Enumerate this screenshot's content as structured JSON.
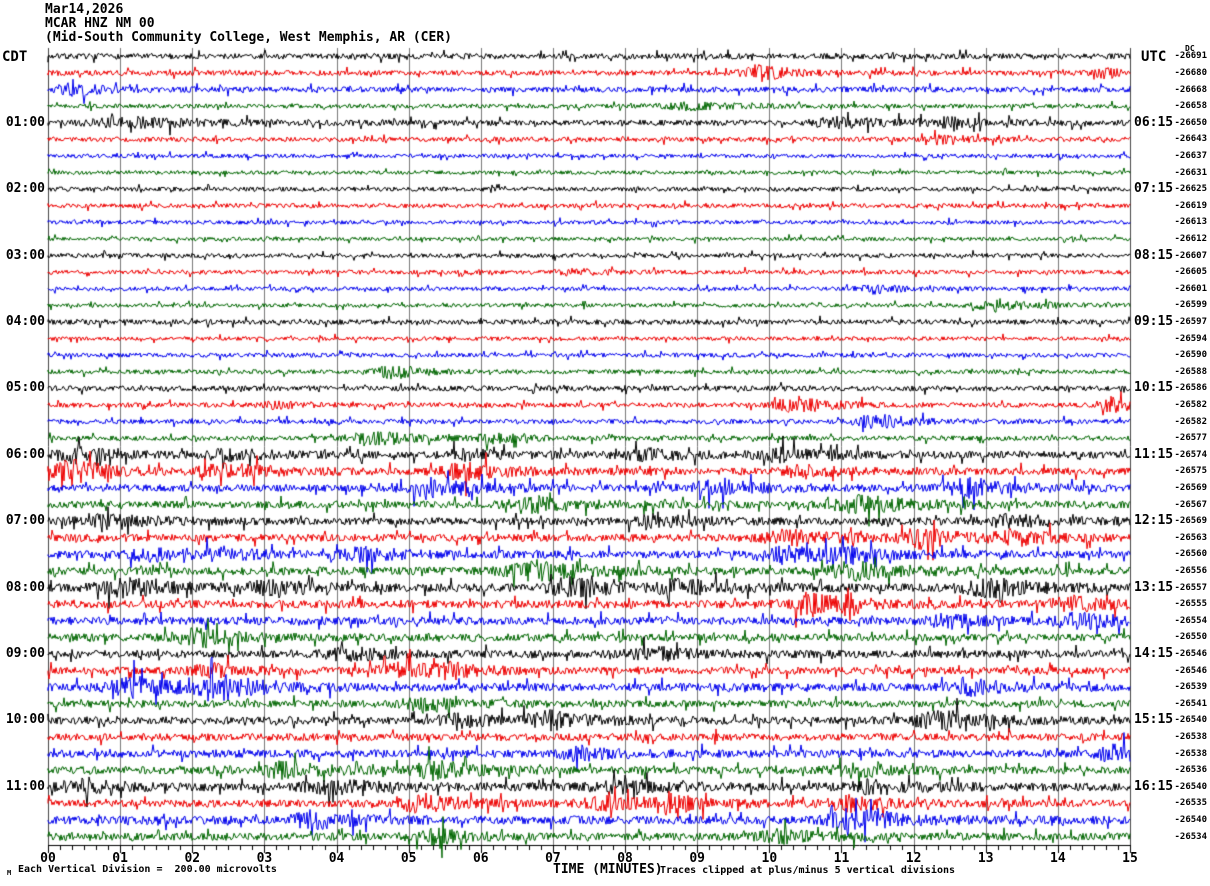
{
  "header": {
    "date": "Mar14,2026",
    "station": "MCAR HNZ NM 00",
    "location": "(Mid-South Community College, West Memphis, AR (CER)"
  },
  "axes": {
    "left_header": "CDT",
    "right_header": "UTC",
    "dc_header": "DC",
    "x_label": "TIME (MINUTES)",
    "x_ticks": [
      "00",
      "01",
      "02",
      "03",
      "04",
      "05",
      "06",
      "07",
      "08",
      "09",
      "10",
      "11",
      "12",
      "13",
      "14",
      "15"
    ]
  },
  "footer": {
    "scale_note": "Each Vertical Division =  200.00 microvolts",
    "clip_note": "Traces clipped at plus/minus 5 vertical divisions",
    "watermark": "M"
  },
  "chart_data": {
    "type": "line",
    "subtype": "helicorder-seismogram",
    "title": "MCAR HNZ NM 00  Mar14,2026",
    "xlabel": "TIME (MINUTES)",
    "x_range_minutes": [
      0,
      15
    ],
    "minutes_per_line": 15,
    "lines_per_hour": 4,
    "grid": "vertical-minute-lines",
    "grid_color": "#777777",
    "border_color": "#444444",
    "colors_cycle": [
      "#000000",
      "#ee0000",
      "#0000ee",
      "#006600"
    ],
    "vertical_division_microvolts": 200.0,
    "clip_divisions": 5,
    "rows": [
      {
        "cdt": "",
        "utc": "",
        "dc": "-26691",
        "color": "#000000",
        "amp": 2.8,
        "events": []
      },
      {
        "cdt": "",
        "utc": "",
        "dc": "-26680",
        "color": "#ee0000",
        "amp": 2.6,
        "events": [
          [
            9.9,
            7,
            25
          ],
          [
            14.7,
            4,
            20
          ]
        ]
      },
      {
        "cdt": "",
        "utc": "",
        "dc": "-26668",
        "color": "#0000ee",
        "amp": 2.8,
        "events": [
          [
            0.3,
            5,
            30
          ]
        ]
      },
      {
        "cdt": "",
        "utc": "",
        "dc": "-26658",
        "color": "#006600",
        "amp": 2.2,
        "events": [
          [
            8.9,
            3,
            40
          ]
        ]
      },
      {
        "cdt": "01:00",
        "utc": "06:15",
        "dc": "-26650",
        "color": "#000000",
        "amp": 2.8,
        "events": [
          [
            1.2,
            4,
            60
          ],
          [
            11.0,
            4,
            40
          ],
          [
            12.4,
            4,
            30
          ]
        ]
      },
      {
        "cdt": "",
        "utc": "",
        "dc": "-26643",
        "color": "#ee0000",
        "amp": 2.4,
        "events": [
          [
            12.4,
            4,
            20
          ]
        ]
      },
      {
        "cdt": "",
        "utc": "",
        "dc": "-26637",
        "color": "#0000ee",
        "amp": 2.0,
        "events": []
      },
      {
        "cdt": "",
        "utc": "",
        "dc": "-26631",
        "color": "#006600",
        "amp": 1.9,
        "events": []
      },
      {
        "cdt": "02:00",
        "utc": "07:15",
        "dc": "-26625",
        "color": "#000000",
        "amp": 2.2,
        "events": []
      },
      {
        "cdt": "",
        "utc": "",
        "dc": "-26619",
        "color": "#ee0000",
        "amp": 2.2,
        "events": []
      },
      {
        "cdt": "",
        "utc": "",
        "dc": "-26613",
        "color": "#0000ee",
        "amp": 2.0,
        "events": []
      },
      {
        "cdt": "",
        "utc": "",
        "dc": "-26612",
        "color": "#006600",
        "amp": 1.9,
        "events": []
      },
      {
        "cdt": "03:00",
        "utc": "08:15",
        "dc": "-26607",
        "color": "#000000",
        "amp": 2.2,
        "events": []
      },
      {
        "cdt": "",
        "utc": "",
        "dc": "-26605",
        "color": "#ee0000",
        "amp": 2.2,
        "events": [
          [
            7.3,
            3,
            25
          ]
        ]
      },
      {
        "cdt": "",
        "utc": "",
        "dc": "-26601",
        "color": "#0000ee",
        "amp": 2.0,
        "events": [
          [
            11.5,
            4,
            25
          ]
        ]
      },
      {
        "cdt": "",
        "utc": "",
        "dc": "-26599",
        "color": "#006600",
        "amp": 2.0,
        "events": [
          [
            13.2,
            5,
            35
          ]
        ]
      },
      {
        "cdt": "04:00",
        "utc": "09:15",
        "dc": "-26597",
        "color": "#000000",
        "amp": 2.6,
        "events": []
      },
      {
        "cdt": "",
        "utc": "",
        "dc": "-26594",
        "color": "#ee0000",
        "amp": 2.0,
        "events": []
      },
      {
        "cdt": "",
        "utc": "",
        "dc": "-26590",
        "color": "#0000ee",
        "amp": 2.2,
        "events": []
      },
      {
        "cdt": "",
        "utc": "",
        "dc": "-26588",
        "color": "#006600",
        "amp": 2.2,
        "events": [
          [
            4.8,
            6,
            25
          ]
        ]
      },
      {
        "cdt": "05:00",
        "utc": "10:15",
        "dc": "-26586",
        "color": "#000000",
        "amp": 2.6,
        "events": []
      },
      {
        "cdt": "",
        "utc": "",
        "dc": "-26582",
        "color": "#ee0000",
        "amp": 2.4,
        "events": [
          [
            3.2,
            3,
            20
          ],
          [
            10.4,
            7,
            30
          ],
          [
            14.8,
            6,
            25
          ]
        ]
      },
      {
        "cdt": "",
        "utc": "",
        "dc": "-26582",
        "color": "#0000ee",
        "amp": 2.4,
        "events": [
          [
            11.5,
            6,
            30
          ]
        ]
      },
      {
        "cdt": "",
        "utc": "",
        "dc": "-26577",
        "color": "#006600",
        "amp": 2.4,
        "events": [
          [
            4.5,
            7,
            30
          ],
          [
            6.2,
            4,
            25
          ]
        ]
      },
      {
        "cdt": "06:00",
        "utc": "11:15",
        "dc": "-26574",
        "color": "#000000",
        "amp": 3.6,
        "events": [
          [
            0.4,
            6,
            30
          ],
          [
            2.5,
            4,
            40
          ],
          [
            5.8,
            4,
            30
          ],
          [
            8.3,
            5,
            30
          ],
          [
            10.2,
            5,
            40
          ]
        ]
      },
      {
        "cdt": "",
        "utc": "",
        "dc": "-26575",
        "color": "#ee0000",
        "amp": 3.6,
        "events": [
          [
            0.35,
            12,
            25
          ],
          [
            2.5,
            6,
            40
          ],
          [
            5.8,
            7,
            35
          ],
          [
            10.5,
            5,
            30
          ]
        ]
      },
      {
        "cdt": "",
        "utc": "",
        "dc": "-26569",
        "color": "#0000ee",
        "amp": 3.6,
        "events": [
          [
            5.3,
            8,
            35
          ],
          [
            9.3,
            6,
            40
          ],
          [
            12.8,
            8,
            35
          ]
        ]
      },
      {
        "cdt": "",
        "utc": "",
        "dc": "-26567",
        "color": "#006600",
        "amp": 3.6,
        "events": [
          [
            6.8,
            6,
            40
          ],
          [
            11.3,
            7,
            45
          ]
        ]
      },
      {
        "cdt": "07:00",
        "utc": "12:15",
        "dc": "-26569",
        "color": "#000000",
        "amp": 3.8,
        "events": [
          [
            0.8,
            5,
            40
          ],
          [
            8.4,
            6,
            30
          ],
          [
            13.4,
            5,
            40
          ]
        ]
      },
      {
        "cdt": "",
        "utc": "",
        "dc": "-26563",
        "color": "#ee0000",
        "amp": 3.8,
        "events": [
          [
            10.3,
            6,
            40
          ],
          [
            12.1,
            8,
            30
          ],
          [
            13.4,
            6,
            30
          ]
        ]
      },
      {
        "cdt": "",
        "utc": "",
        "dc": "-26560",
        "color": "#0000ee",
        "amp": 3.8,
        "events": [
          [
            1.4,
            5,
            30
          ],
          [
            2.4,
            6,
            25
          ],
          [
            4.4,
            5,
            35
          ],
          [
            10.2,
            7,
            35
          ],
          [
            11.2,
            5,
            30
          ]
        ]
      },
      {
        "cdt": "",
        "utc": "",
        "dc": "-26556",
        "color": "#006600",
        "amp": 4.0,
        "events": [
          [
            6.8,
            8,
            40
          ],
          [
            11.2,
            7,
            40
          ]
        ]
      },
      {
        "cdt": "08:00",
        "utc": "13:15",
        "dc": "-26557",
        "color": "#000000",
        "amp": 4.2,
        "events": [
          [
            1.1,
            7,
            40
          ],
          [
            3.1,
            5,
            30
          ],
          [
            7.3,
            8,
            35
          ],
          [
            8.8,
            6,
            35
          ],
          [
            13.1,
            7,
            40
          ]
        ]
      },
      {
        "cdt": "",
        "utc": "",
        "dc": "-26555",
        "color": "#ee0000",
        "amp": 4.0,
        "events": [
          [
            10.6,
            9,
            35
          ],
          [
            11.05,
            22,
            6
          ],
          [
            14.2,
            6,
            30
          ]
        ]
      },
      {
        "cdt": "",
        "utc": "",
        "dc": "-26554",
        "color": "#0000ee",
        "amp": 4.0,
        "events": [
          [
            12.5,
            5,
            30
          ],
          [
            14.3,
            7,
            30
          ]
        ]
      },
      {
        "cdt": "",
        "utc": "",
        "dc": "-26550",
        "color": "#006600",
        "amp": 3.8,
        "events": [
          [
            2.1,
            7,
            35
          ]
        ]
      },
      {
        "cdt": "09:00",
        "utc": "14:15",
        "dc": "-26546",
        "color": "#000000",
        "amp": 3.8,
        "events": [
          [
            4.2,
            5,
            35
          ],
          [
            8.4,
            5,
            35
          ]
        ]
      },
      {
        "cdt": "",
        "utc": "",
        "dc": "-26546",
        "color": "#ee0000",
        "amp": 3.6,
        "events": [
          [
            2.3,
            5,
            30
          ],
          [
            4.9,
            7,
            30
          ],
          [
            5.6,
            5,
            25
          ]
        ]
      },
      {
        "cdt": "",
        "utc": "",
        "dc": "-26539",
        "color": "#0000ee",
        "amp": 4.0,
        "events": [
          [
            1.2,
            8,
            35
          ],
          [
            2.4,
            10,
            35
          ],
          [
            12.8,
            6,
            30
          ]
        ]
      },
      {
        "cdt": "",
        "utc": "",
        "dc": "-26541",
        "color": "#006600",
        "amp": 3.6,
        "events": [
          [
            5.2,
            6,
            30
          ]
        ]
      },
      {
        "cdt": "10:00",
        "utc": "15:15",
        "dc": "-26540",
        "color": "#000000",
        "amp": 3.8,
        "events": [
          [
            5.7,
            5,
            30
          ],
          [
            7.0,
            7,
            35
          ],
          [
            12.4,
            8,
            35
          ]
        ]
      },
      {
        "cdt": "",
        "utc": "",
        "dc": "-26538",
        "color": "#ee0000",
        "amp": 3.6,
        "events": []
      },
      {
        "cdt": "",
        "utc": "",
        "dc": "-26538",
        "color": "#0000ee",
        "amp": 4.0,
        "events": [
          [
            7.4,
            5,
            30
          ],
          [
            14.8,
            7,
            25
          ]
        ]
      },
      {
        "cdt": "",
        "utc": "",
        "dc": "-26536",
        "color": "#006600",
        "amp": 3.8,
        "events": [
          [
            3.3,
            7,
            30
          ],
          [
            5.4,
            8,
            30
          ],
          [
            11.2,
            5,
            35
          ]
        ]
      },
      {
        "cdt": "11:00",
        "utc": "16:15",
        "dc": "-26540",
        "color": "#000000",
        "amp": 4.2,
        "events": [
          [
            0.5,
            5,
            30
          ],
          [
            4.0,
            5,
            40
          ],
          [
            8.0,
            5,
            40
          ],
          [
            11.5,
            5,
            35
          ]
        ]
      },
      {
        "cdt": "",
        "utc": "",
        "dc": "-26535",
        "color": "#ee0000",
        "amp": 3.8,
        "events": [
          [
            5.2,
            8,
            30
          ],
          [
            7.7,
            5,
            30
          ],
          [
            8.6,
            8,
            30
          ],
          [
            11.1,
            6,
            30
          ]
        ]
      },
      {
        "cdt": "",
        "utc": "",
        "dc": "-26540",
        "color": "#0000ee",
        "amp": 4.2,
        "events": [
          [
            3.7,
            7,
            30
          ],
          [
            11.2,
            9,
            35
          ]
        ]
      },
      {
        "cdt": "",
        "utc": "",
        "dc": "-26534",
        "color": "#006600",
        "amp": 3.8,
        "events": [
          [
            5.4,
            6,
            30
          ],
          [
            10.2,
            5,
            35
          ]
        ]
      }
    ]
  }
}
